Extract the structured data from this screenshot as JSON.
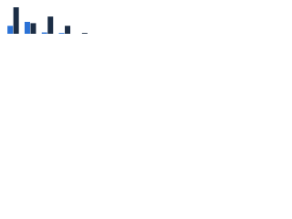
{
  "chart_data": {
    "type": "bar",
    "categories": [
      null,
      null,
      null,
      null,
      null
    ],
    "series": [
      {
        "color": "#2b72d6",
        "values": [
          30,
          45,
          5,
          3,
          0
        ]
      },
      {
        "color": "#1b2d45",
        "values": [
          100,
          40,
          65,
          30,
          3
        ]
      }
    ],
    "ylim": [
      0,
      100
    ]
  }
}
